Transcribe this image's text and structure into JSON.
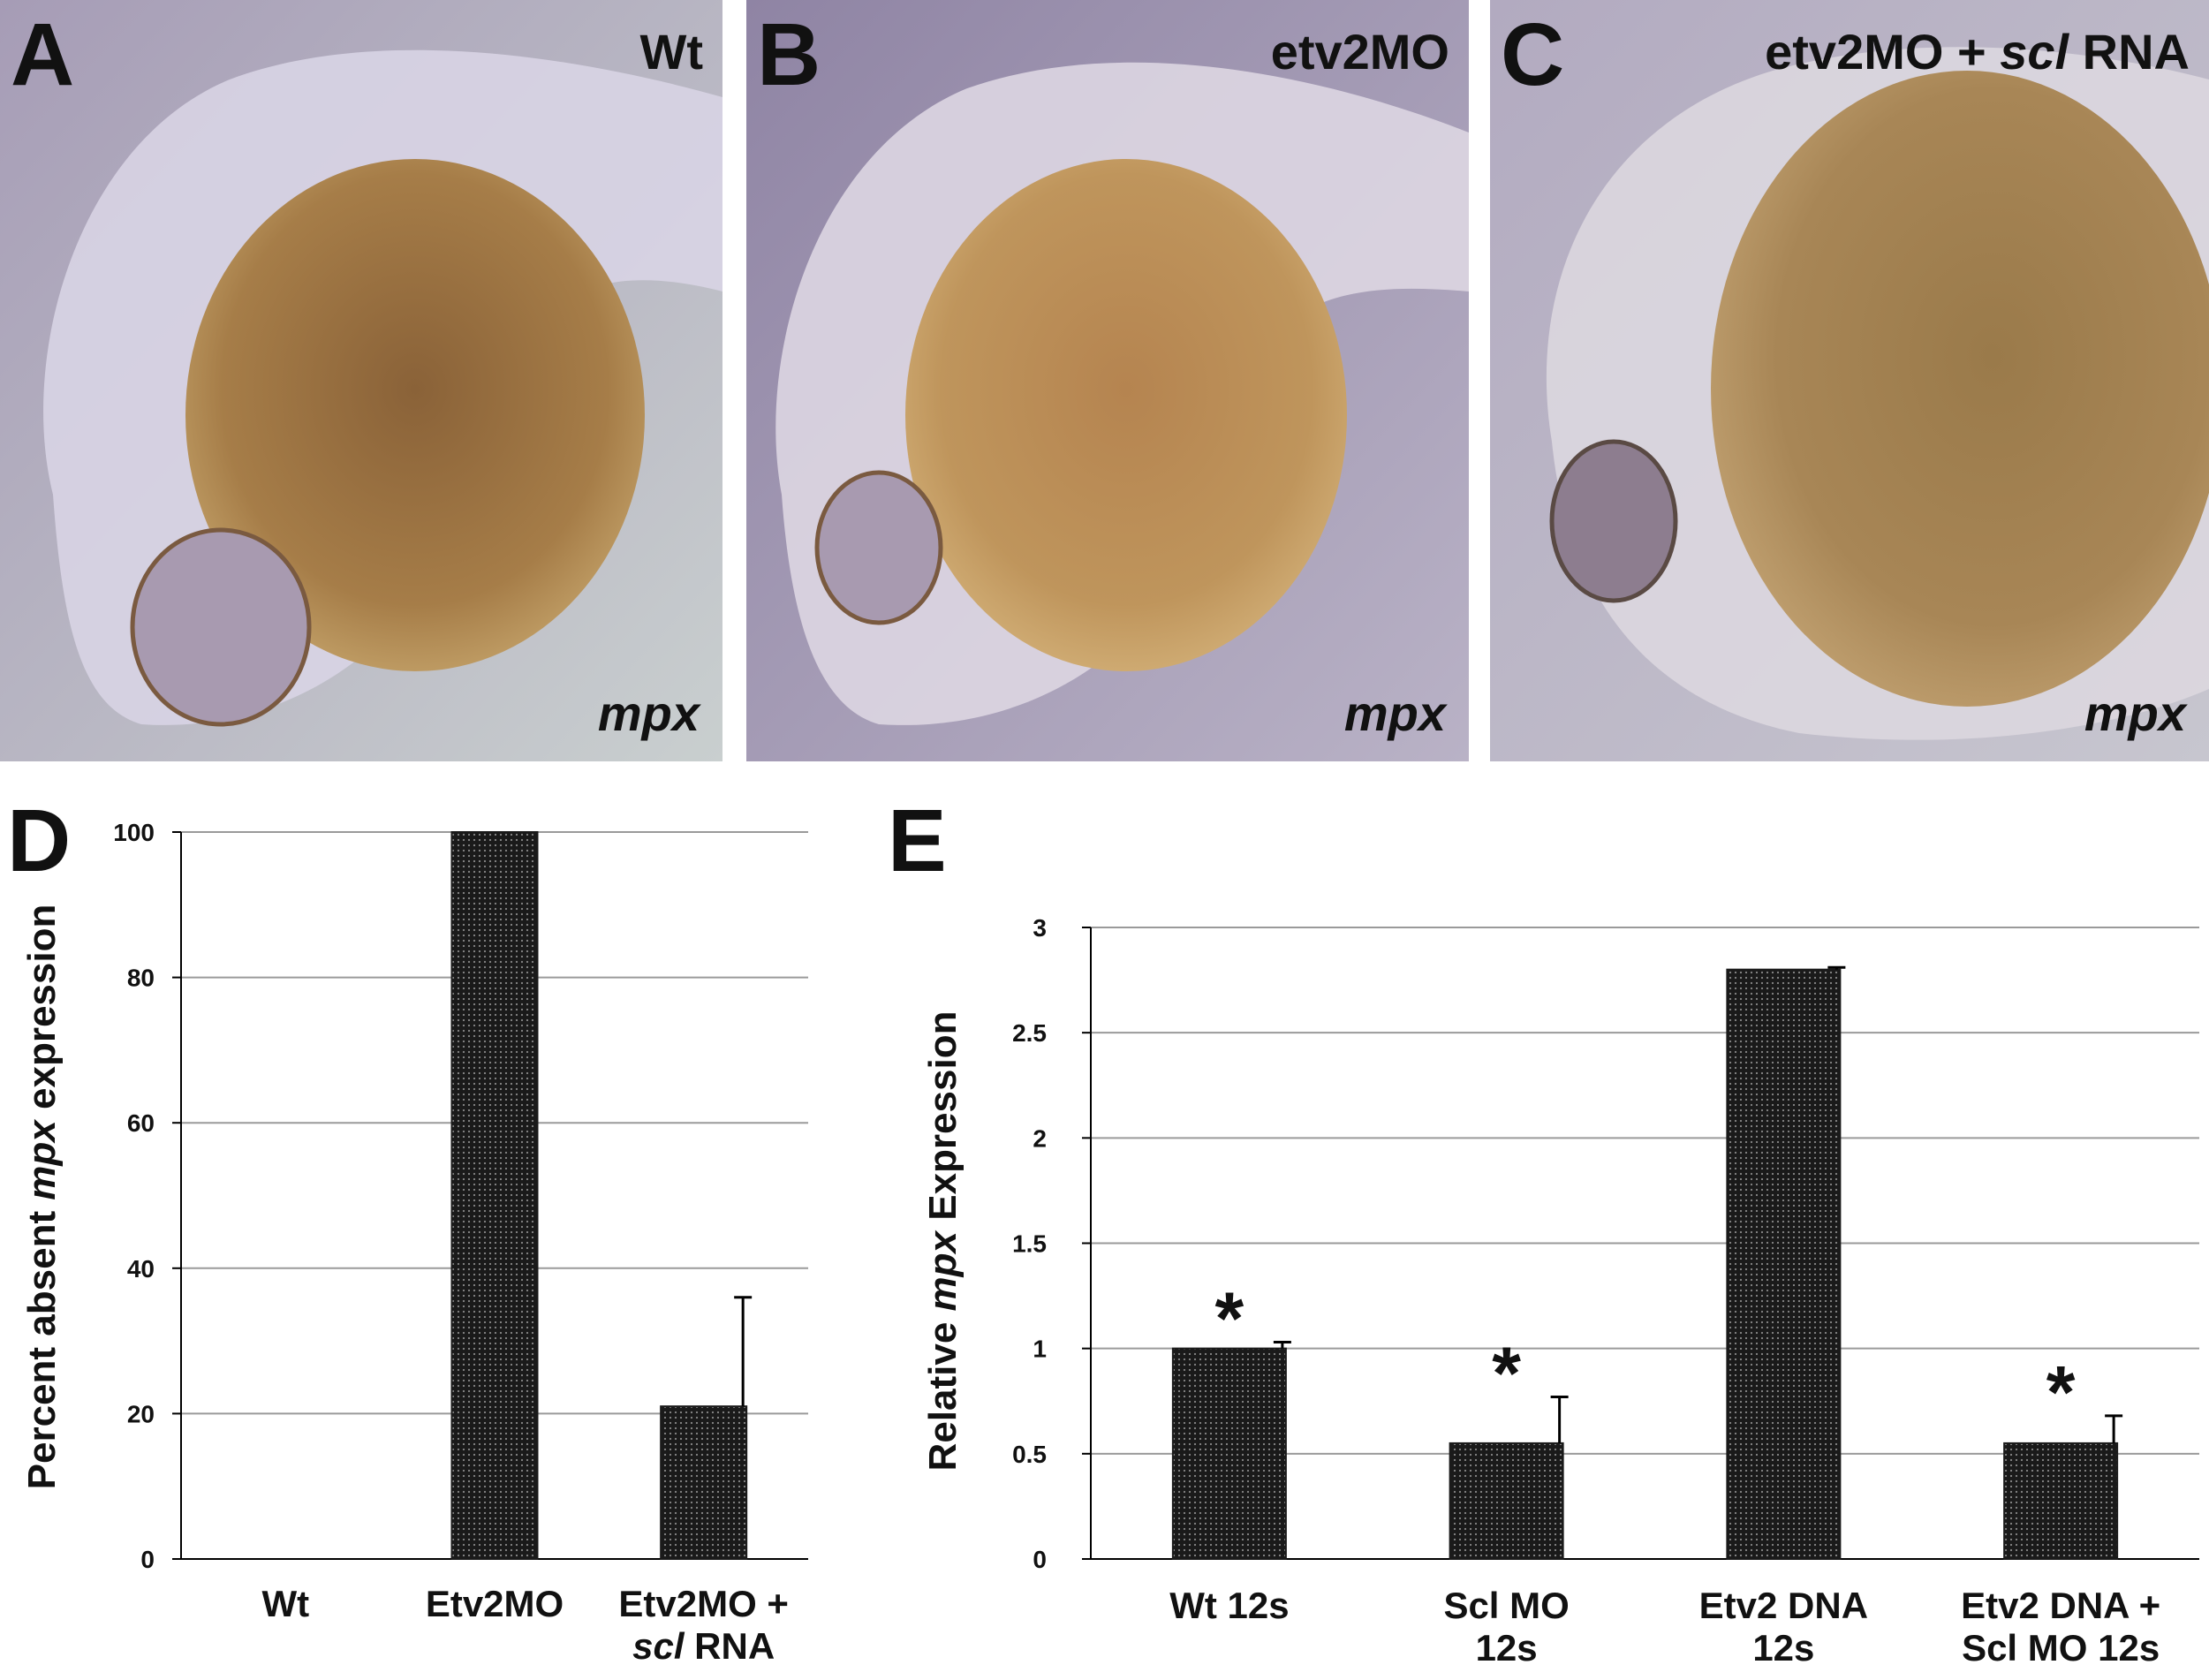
{
  "panels": {
    "a": {
      "letter": "A",
      "condition": "Wt",
      "gene": "mpx"
    },
    "b": {
      "letter": "B",
      "condition": "etv2MO",
      "gene": "mpx"
    },
    "c": {
      "letter": "C",
      "condition_prefix": "etv2MO + ",
      "condition_italic": "scl",
      "condition_suffix": " RNA",
      "gene": "mpx"
    }
  },
  "colors": {
    "bar_fill": "#1a1a1a",
    "grid": "#9a9a9a",
    "text": "#111111",
    "yolk": "#a07a45",
    "background_photo": "#b7afc3",
    "dots": "#2a1f55"
  },
  "chart_data": [
    {
      "type": "bar",
      "panel": "D",
      "ylabel_parts": [
        "Percent absent ",
        "mpx",
        " expression"
      ],
      "ylim": [
        0,
        100
      ],
      "yticks": [
        0,
        20,
        40,
        60,
        80,
        100
      ],
      "ytick_labels": [
        "0",
        "20",
        "40",
        "60",
        "80",
        "100"
      ],
      "categories": [
        [
          "Wt"
        ],
        [
          "Etv2MO"
        ],
        [
          "Etv2MO +",
          "scl RNA"
        ]
      ],
      "values": [
        0,
        100,
        21
      ],
      "errors": [
        0,
        0,
        15
      ],
      "significance": [
        "",
        "",
        ""
      ],
      "grid": true
    },
    {
      "type": "bar",
      "panel": "E",
      "ylabel_parts": [
        "Relative ",
        "mpx",
        " Expression"
      ],
      "ylim": [
        0,
        3
      ],
      "yticks": [
        0,
        0.5,
        1,
        1.5,
        2,
        2.5,
        3
      ],
      "ytick_labels": [
        "0",
        "0.5",
        "1",
        "1.5",
        "2",
        "2.5",
        "3"
      ],
      "categories": [
        [
          "Wt 12s"
        ],
        [
          "Scl MO",
          "12s"
        ],
        [
          "Etv2 DNA",
          "12s"
        ],
        [
          "Etv2 DNA +",
          "Scl MO 12s"
        ]
      ],
      "values": [
        1.0,
        0.55,
        2.8,
        0.55
      ],
      "errors": [
        0.03,
        0.22,
        0.01,
        0.13
      ],
      "significance": [
        "*",
        "*",
        "",
        "*"
      ],
      "grid": true
    }
  ]
}
